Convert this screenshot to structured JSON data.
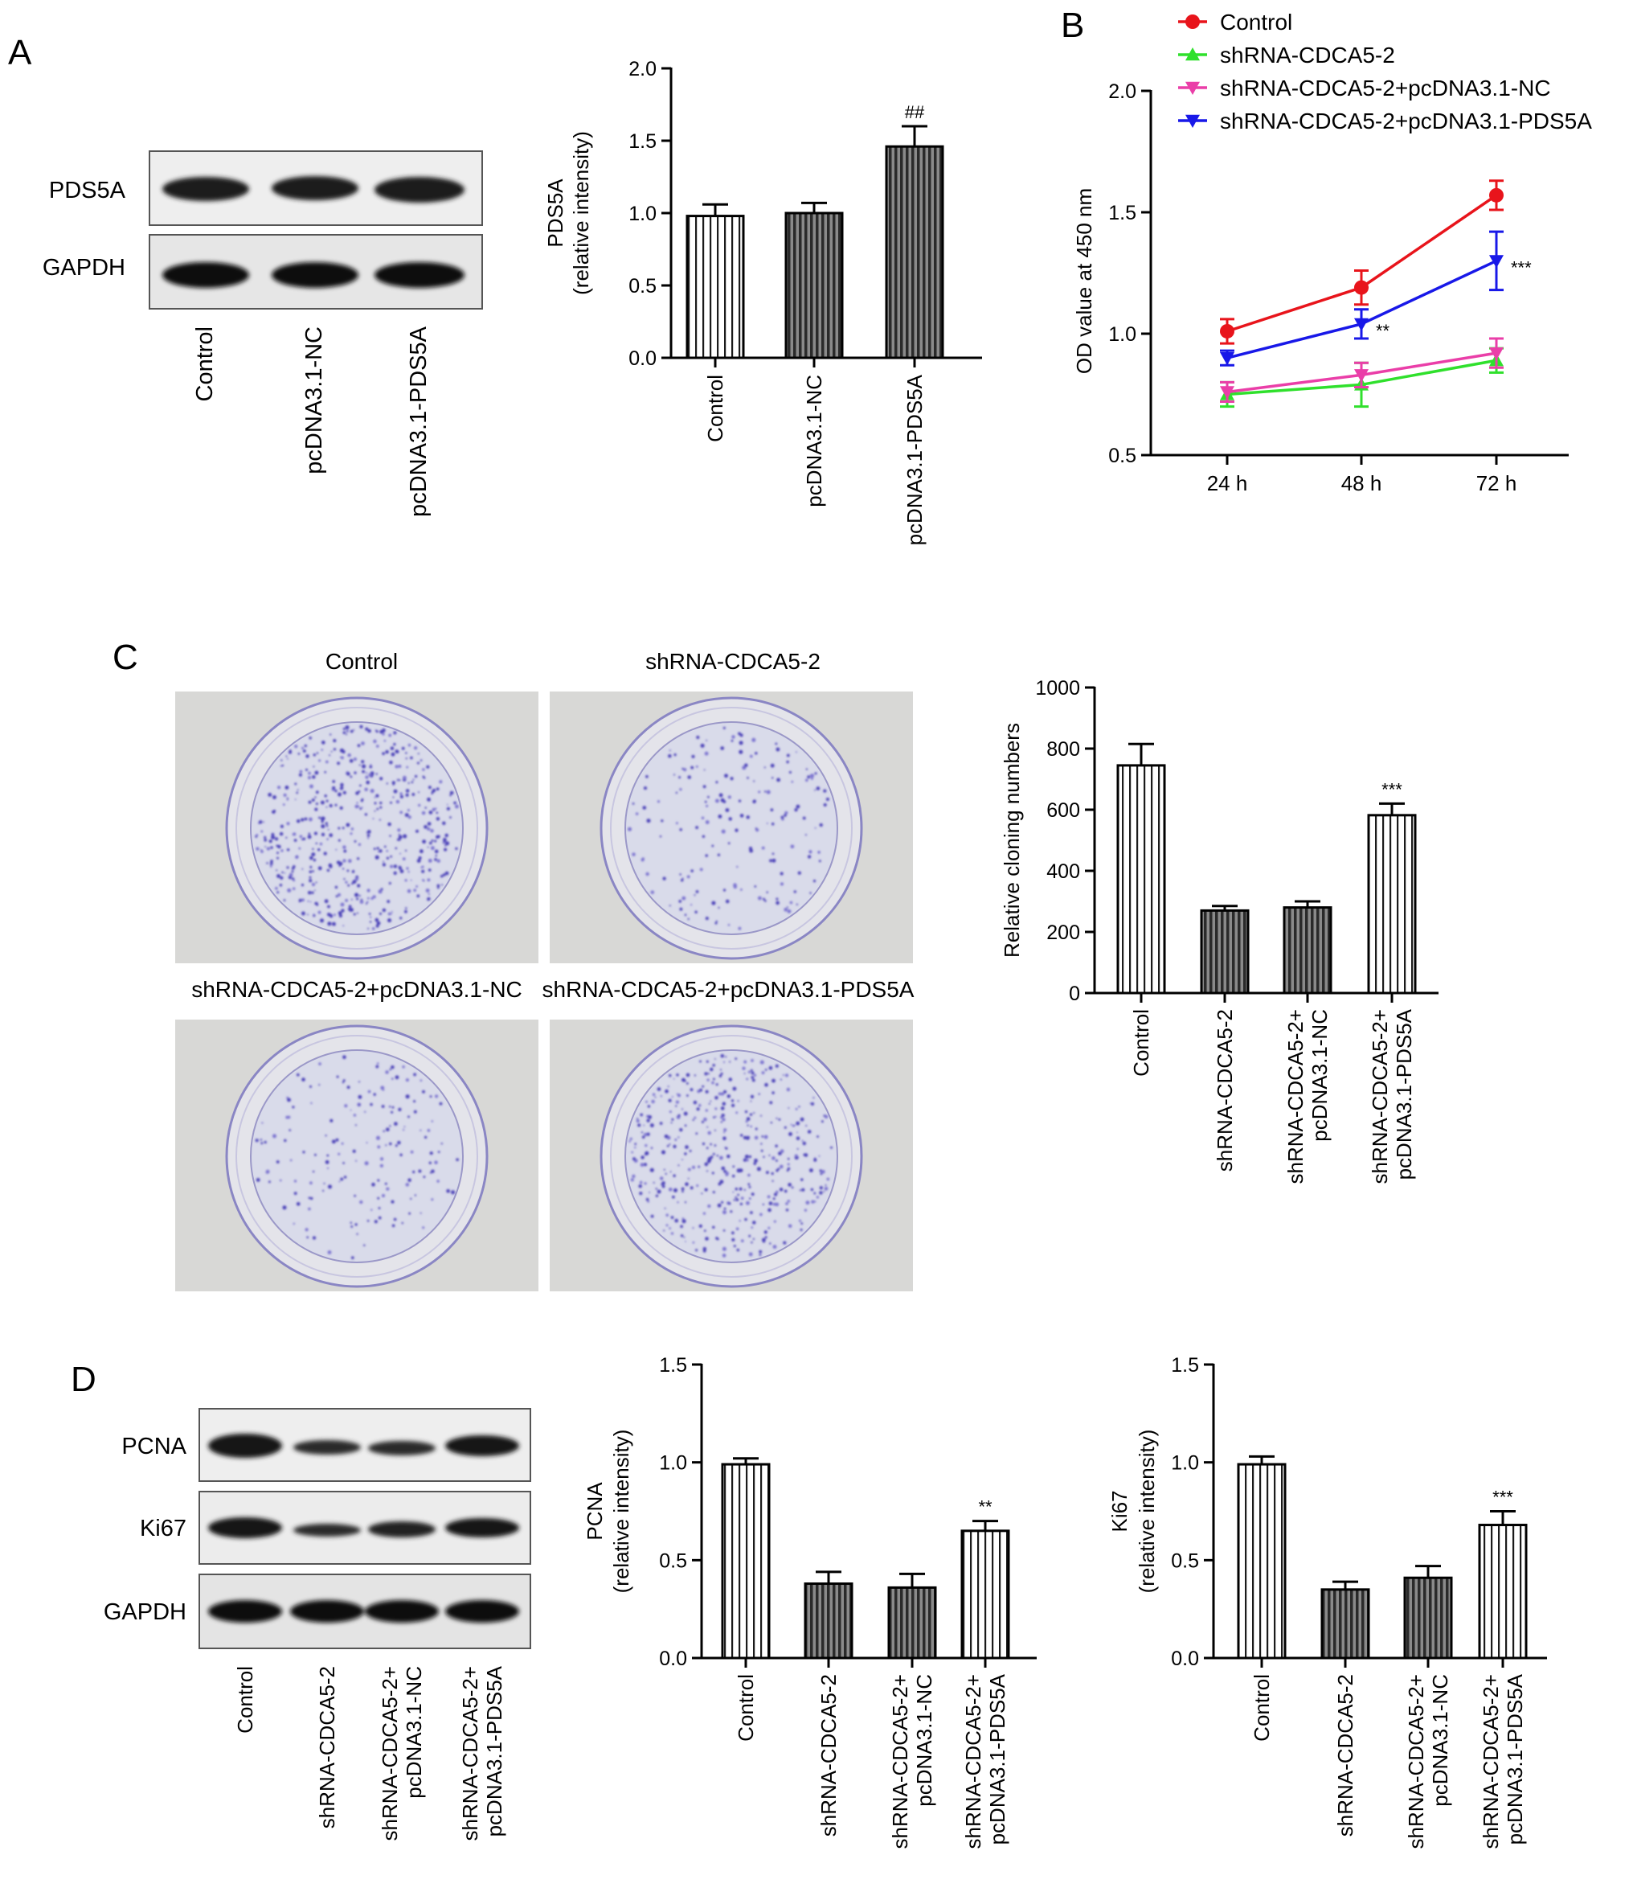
{
  "panels": {
    "A": {
      "letter": "A",
      "blot_rows": [
        "PDS5A",
        "GAPDH"
      ],
      "blot_lanes": [
        "Control",
        "pcDNA3.1-NC",
        "pcDNA3.1-PDS5A"
      ]
    },
    "B": {
      "letter": "B"
    },
    "C": {
      "letter": "C",
      "dish_labels": [
        "Control",
        "shRNA-CDCA5-2",
        "shRNA-CDCA5-2+pcDNA3.1-NC",
        "shRNA-CDCA5-2+pcDNA3.1-PDS5A"
      ]
    },
    "D": {
      "letter": "D",
      "blot_rows": [
        "PCNA",
        "Ki67",
        "GAPDH"
      ],
      "blot_lanes": [
        [
          "Control"
        ],
        [
          "shRNA-CDCA5-2"
        ],
        [
          "shRNA-CDCA5-2+",
          "pcDNA3.1-NC"
        ],
        [
          "shRNA-CDCA5-2+",
          "pcDNA3.1-PDS5A"
        ]
      ]
    }
  },
  "chart_data": [
    {
      "id": "A",
      "type": "bar",
      "categories": [
        [
          "Control"
        ],
        [
          "pcDNA3.1-NC"
        ],
        [
          "pcDNA3.1-PDS5A"
        ]
      ],
      "values": [
        0.98,
        1.0,
        1.46
      ],
      "errors": [
        0.08,
        0.07,
        0.14
      ],
      "annotations": [
        "",
        "",
        "##"
      ],
      "ylabel": [
        "PDS5A",
        "(relative intensity)"
      ],
      "ylim": [
        0,
        2.0
      ],
      "yticks": [
        "0.0",
        "0.5",
        "1.0",
        "1.5",
        "2.0"
      ],
      "yticks_values": [
        0,
        0.5,
        1.0,
        1.5,
        2.0
      ],
      "hatch": [
        "light",
        "dark",
        "dark"
      ]
    },
    {
      "id": "B",
      "type": "line",
      "x": [
        "24 h",
        "48 h",
        "72 h"
      ],
      "ylabel": "OD value at 450 nm",
      "ylim": [
        0.5,
        2.0
      ],
      "yticks": [
        "0.5",
        "1.0",
        "1.5",
        "2.0"
      ],
      "yticks_values": [
        0.5,
        1.0,
        1.5,
        2.0
      ],
      "legend_position": "top",
      "series": [
        {
          "name": "Control",
          "values": [
            1.01,
            1.19,
            1.57
          ],
          "errors": [
            0.05,
            0.07,
            0.06
          ],
          "color": "#e8141b",
          "marker": "circle"
        },
        {
          "name": "shRNA-CDCA5-2",
          "values": [
            0.75,
            0.79,
            0.89
          ],
          "errors": [
            0.05,
            0.09,
            0.05
          ],
          "color": "#2fe02c",
          "marker": "triangle-up"
        },
        {
          "name": "shRNA-CDCA5-2+pcDNA3.1-NC",
          "values": [
            0.76,
            0.83,
            0.92
          ],
          "errors": [
            0.04,
            0.05,
            0.06
          ],
          "color": "#ea3ea8",
          "marker": "triangle-down"
        },
        {
          "name": "shRNA-CDCA5-2+pcDNA3.1-PDS5A",
          "values": [
            0.9,
            1.04,
            1.3
          ],
          "errors": [
            0.03,
            0.06,
            0.12
          ],
          "color": "#1818e8",
          "marker": "triangle-down"
        }
      ],
      "annotations": [
        {
          "series": 3,
          "index": 1,
          "text": "**"
        },
        {
          "series": 3,
          "index": 2,
          "text": "***"
        }
      ]
    },
    {
      "id": "C",
      "type": "bar",
      "categories": [
        [
          "Control"
        ],
        [
          "shRNA-CDCA5-2"
        ],
        [
          "shRNA-CDCA5-2+",
          "pcDNA3.1-NC"
        ],
        [
          "shRNA-CDCA5-2+",
          "pcDNA3.1-PDS5A"
        ]
      ],
      "values": [
        745,
        270,
        280,
        582
      ],
      "errors": [
        70,
        15,
        20,
        38
      ],
      "annotations": [
        "",
        "",
        "",
        "***"
      ],
      "ylabel": [
        "Relative cloning numbers"
      ],
      "ylim": [
        0,
        1000
      ],
      "yticks": [
        "0",
        "200",
        "400",
        "600",
        "800",
        "1000"
      ],
      "yticks_values": [
        0,
        200,
        400,
        600,
        800,
        1000
      ],
      "hatch": [
        "light",
        "dark",
        "dark",
        "light"
      ]
    },
    {
      "id": "D1",
      "type": "bar",
      "categories": [
        [
          "Control"
        ],
        [
          "shRNA-CDCA5-2"
        ],
        [
          "shRNA-CDCA5-2+",
          "pcDNA3.1-NC"
        ],
        [
          "shRNA-CDCA5-2+",
          "pcDNA3.1-PDS5A"
        ]
      ],
      "values": [
        0.99,
        0.38,
        0.36,
        0.65
      ],
      "errors": [
        0.03,
        0.06,
        0.07,
        0.05
      ],
      "annotations": [
        "",
        "",
        "",
        "**"
      ],
      "ylabel": [
        "PCNA",
        "(relative intensity)"
      ],
      "ylim": [
        0,
        1.5
      ],
      "yticks": [
        "0.0",
        "0.5",
        "1.0",
        "1.5"
      ],
      "yticks_values": [
        0,
        0.5,
        1.0,
        1.5
      ],
      "hatch": [
        "light",
        "dark",
        "dark",
        "light"
      ]
    },
    {
      "id": "D2",
      "type": "bar",
      "categories": [
        [
          "Control"
        ],
        [
          "shRNA-CDCA5-2"
        ],
        [
          "shRNA-CDCA5-2+",
          "pcDNA3.1-NC"
        ],
        [
          "shRNA-CDCA5-2+",
          "pcDNA3.1-PDS5A"
        ]
      ],
      "values": [
        0.99,
        0.35,
        0.41,
        0.68
      ],
      "errors": [
        0.04,
        0.04,
        0.06,
        0.07
      ],
      "annotations": [
        "",
        "",
        "",
        "***"
      ],
      "ylabel": [
        "Ki67",
        "(relative intensity)"
      ],
      "ylim": [
        0,
        1.5
      ],
      "yticks": [
        "0.0",
        "0.5",
        "1.0",
        "1.5"
      ],
      "yticks_values": [
        0,
        0.5,
        1.0,
        1.5
      ],
      "hatch": [
        "light",
        "dark",
        "dark",
        "light"
      ]
    }
  ]
}
